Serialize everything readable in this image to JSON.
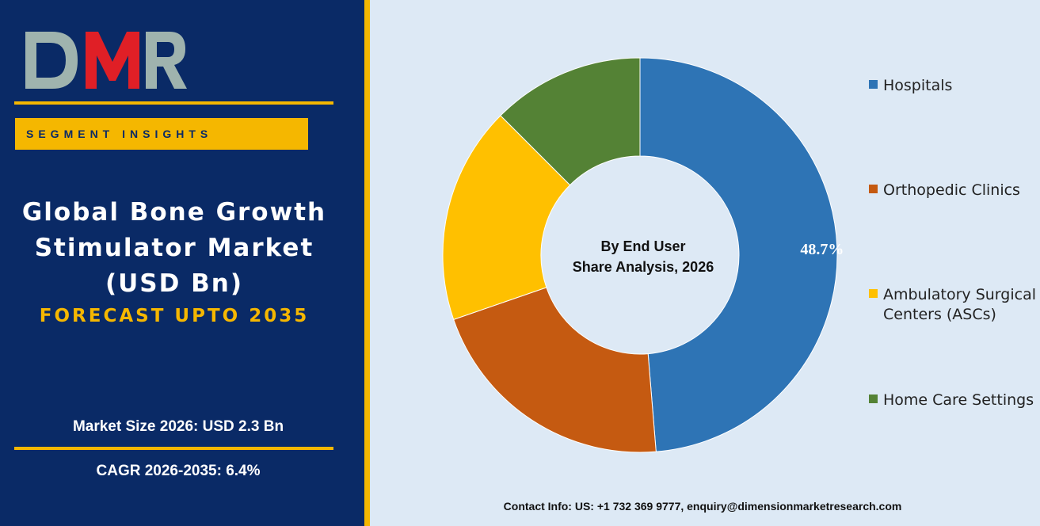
{
  "brand": {
    "logo_text": "DMR"
  },
  "left": {
    "badge": "SEGMENT INSIGHTS",
    "title_lines": [
      "Global Bone Growth",
      "Stimulator Market",
      "(USD Bn)"
    ],
    "forecast": "FORECAST UPTO 2035",
    "market_size": "Market Size 2026: USD 2.3 Bn",
    "cagr": "CAGR 2026-2035: 6.4%"
  },
  "colors": {
    "panel": "#0a2a66",
    "accent": "#f5b700",
    "background": "#dde9f5"
  },
  "chart_data": {
    "type": "pie",
    "donut": true,
    "center_text": [
      "By End User",
      "Share Analysis, 2026"
    ],
    "categories": [
      "Hospitals",
      "Orthopedic Clinics",
      "Ambulatory Surgical Centers (ASCs)",
      "Home Care Settings"
    ],
    "legend_lines": [
      [
        "Hospitals"
      ],
      [
        "Orthopedic Clinics"
      ],
      [
        "Ambulatory Surgical",
        "Centers (ASCs)"
      ],
      [
        "Home Care Settings"
      ]
    ],
    "values": [
      48.7,
      21.0,
      17.8,
      12.5
    ],
    "data_labels": [
      "48.7%",
      "",
      "",
      ""
    ],
    "colors": [
      "#2e74b5",
      "#c55a11",
      "#ffc000",
      "#548235"
    ],
    "legend_position": "right"
  },
  "footer": {
    "contact": "Contact Info: US: +1 732 369 9777, enquiry@dimensionmarketresearch.com"
  }
}
